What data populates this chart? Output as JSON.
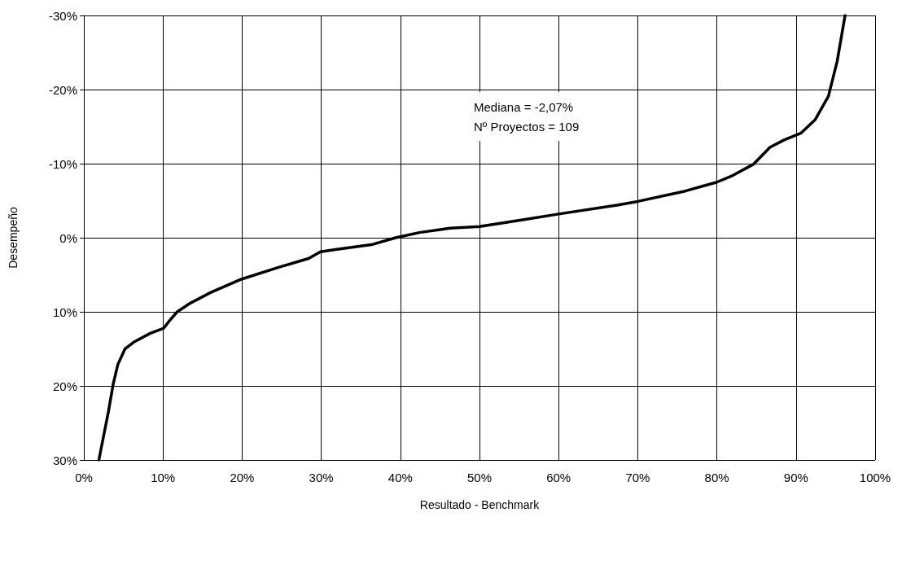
{
  "chart_data": {
    "type": "line",
    "xlabel": "Resultado - Benchmark",
    "ylabel": "Desempeño",
    "annotations": [
      "Mediana = -2,07%\nNº Proyectos = 109"
    ],
    "xlim": [
      0,
      100
    ],
    "xticks": [
      {
        "value": 0,
        "label": "0%"
      },
      {
        "value": 10,
        "label": "10%"
      },
      {
        "value": 20,
        "label": "20%"
      },
      {
        "value": 30,
        "label": "30%"
      },
      {
        "value": 40,
        "label": "40%"
      },
      {
        "value": 50,
        "label": "50%"
      },
      {
        "value": 60,
        "label": "60%"
      },
      {
        "value": 70,
        "label": "70%"
      },
      {
        "value": 80,
        "label": "80%"
      },
      {
        "value": 90,
        "label": "90%"
      },
      {
        "value": 100,
        "label": "100%"
      }
    ],
    "ylim": [
      30,
      -30
    ],
    "yticks": [
      {
        "value": -30,
        "label": "-30%"
      },
      {
        "value": -20,
        "label": "-20%"
      },
      {
        "value": -10,
        "label": "-10%"
      },
      {
        "value": 0,
        "label": "0%"
      },
      {
        "value": 10,
        "label": "10%"
      },
      {
        "value": 20,
        "label": "20%"
      },
      {
        "value": 30,
        "label": "30%"
      }
    ],
    "grid": true,
    "marker": "none",
    "line_style": "solid",
    "series": [
      {
        "color": "#000000",
        "x": [
          1.9,
          3.1,
          3.7,
          4.3,
          5.2,
          6.3,
          8.4,
          10.1,
          10.9,
          11.8,
          13.5,
          16.0,
          19.9,
          24.6,
          28.4,
          29.9,
          31.8,
          36.5,
          39.4,
          42.4,
          46.3,
          50,
          55.3,
          60,
          67.4,
          70,
          76,
          80,
          82,
          84.6,
          86.7,
          88.5,
          90.6,
          92.4,
          94.1,
          95.2,
          96.2
        ],
        "values": [
          30,
          23.5,
          19.8,
          17.1,
          15.0,
          14.1,
          12.9,
          12.2,
          11.1,
          10.0,
          8.8,
          7.4,
          5.6,
          4.0,
          2.8,
          1.9,
          1.6,
          0.9,
          0,
          -0.7,
          -1.3,
          -1.5,
          -2.4,
          -3.2,
          -4.4,
          -4.9,
          -6.3,
          -7.5,
          -8.4,
          -9.9,
          -12.2,
          -13.2,
          -14.1,
          -15.9,
          -19.1,
          -23.8,
          -30
        ]
      }
    ]
  }
}
